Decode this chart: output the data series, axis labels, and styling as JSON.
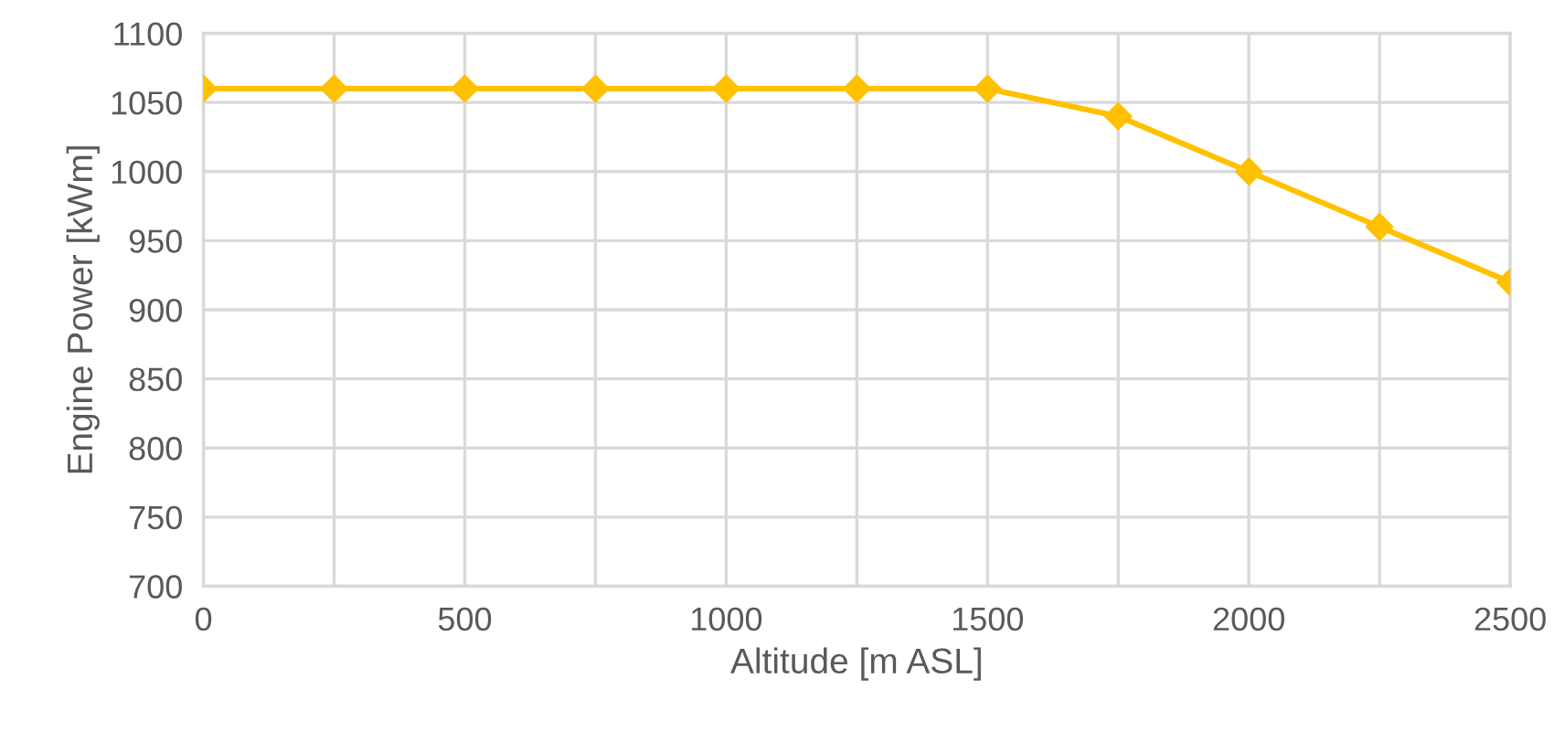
{
  "chart_data": {
    "type": "line",
    "xlabel": "Altitude [m ASL]",
    "ylabel": "Engine Power [kWm]",
    "x": [
      0,
      250,
      500,
      750,
      1000,
      1250,
      1500,
      1750,
      2000,
      2250,
      2500
    ],
    "series": [
      {
        "color": "#ffc000",
        "values": [
          1060,
          1060,
          1060,
          1060,
          1060,
          1060,
          1060,
          1040,
          1000,
          960,
          920
        ]
      }
    ],
    "xlim": [
      0,
      2500
    ],
    "ylim": [
      700,
      1100
    ],
    "xticks": [
      0,
      {
        "value": 250,
        "label": null
      },
      500,
      {
        "value": 750,
        "label": null
      },
      1000,
      {
        "value": 1250,
        "label": null
      },
      1500,
      {
        "value": 1750,
        "label": null
      },
      2000,
      {
        "value": 2250,
        "label": null
      },
      2500
    ],
    "yticks": [
      700,
      750,
      800,
      850,
      900,
      950,
      1000,
      1050,
      1100
    ],
    "grid": true,
    "marker": "diamond",
    "line_style": "solid",
    "legend": false
  }
}
